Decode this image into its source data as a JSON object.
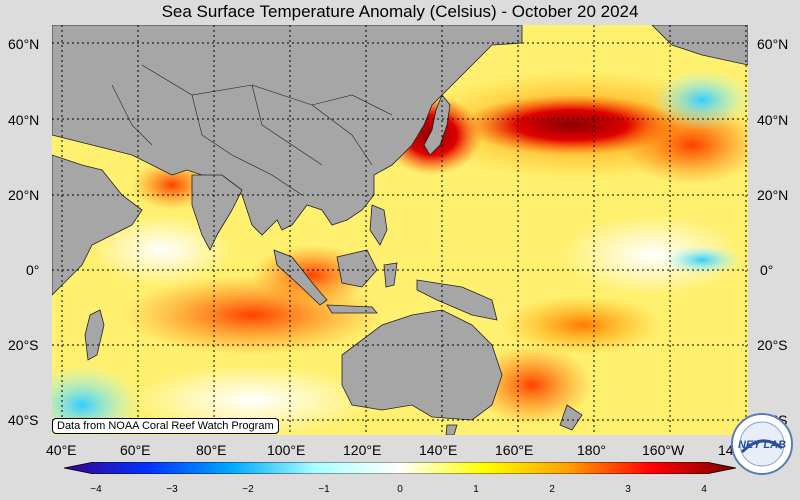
{
  "title": "Sea Surface Temperature Anomaly (Celsius) - October 20 2024",
  "lat_labels": [
    "60°N",
    "40°N",
    "20°N",
    "0°",
    "20°S",
    "40°S"
  ],
  "lon_labels": [
    "40°E",
    "60°E",
    "80°E",
    "100°E",
    "120°E",
    "140°E",
    "160°E",
    "180°",
    "160°W",
    "14"
  ],
  "credit": "Data from NOAA Coral Reef Watch Program",
  "colorbar": {
    "ticks": [
      "−4",
      "−3",
      "−2",
      "−1",
      "0",
      "1",
      "2",
      "3",
      "4"
    ],
    "colors": [
      "#3b008c",
      "#0033ff",
      "#00aaff",
      "#aaffff",
      "#ffffff",
      "#ffff00",
      "#ffa000",
      "#ff0000",
      "#7a0000"
    ]
  },
  "logo": {
    "text": "NEY LAB"
  },
  "colors": {
    "land": "#a6a6a6",
    "background": "#dcdcdc"
  }
}
